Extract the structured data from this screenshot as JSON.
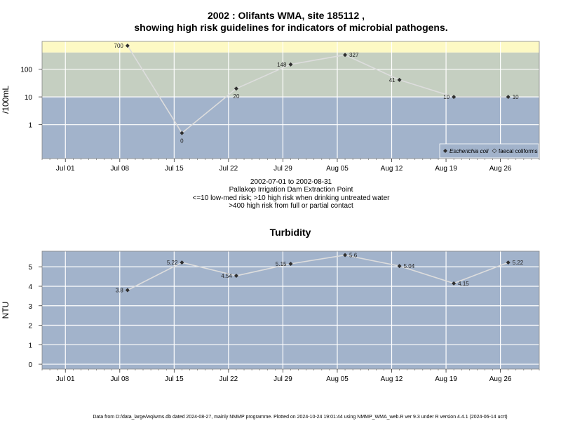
{
  "colors": {
    "low_risk_band": "#a2b3cb",
    "mid_risk_band": "#c5cfc1",
    "high_risk_band": "#fdf9c4",
    "grid": "#ffffff",
    "line": "#dddddd",
    "marker": "#2f2f2f"
  },
  "chart_data": [
    {
      "type": "line",
      "title_line1": "2002 : Olifants WMA, site 185112 ,",
      "title_line2": "showing high risk guidelines for indicators of microbial pathogens.",
      "ylabel": "/100mL",
      "y_scale": "log10",
      "ylim": [
        0.06,
        1000
      ],
      "y_ticks": [
        {
          "v": 1,
          "label": "1"
        },
        {
          "v": 10,
          "label": "10"
        },
        {
          "v": 100,
          "label": "100"
        }
      ],
      "x_range": [
        "2002-06-28",
        "2002-08-31"
      ],
      "x_ticks": [
        {
          "date": "2002-07-01",
          "label": "Jul 01"
        },
        {
          "date": "2002-07-08",
          "label": "Jul 08"
        },
        {
          "date": "2002-07-15",
          "label": "Jul 15"
        },
        {
          "date": "2002-07-22",
          "label": "Jul 22"
        },
        {
          "date": "2002-07-29",
          "label": "Jul 29"
        },
        {
          "date": "2002-08-05",
          "label": "Aug 05"
        },
        {
          "date": "2002-08-12",
          "label": "Aug 12"
        },
        {
          "date": "2002-08-19",
          "label": "Aug 19"
        },
        {
          "date": "2002-08-26",
          "label": "Aug 26"
        }
      ],
      "bands": [
        {
          "from": 0.06,
          "to": 10,
          "color_key": "low_risk_band"
        },
        {
          "from": 10,
          "to": 400,
          "color_key": "mid_risk_band"
        },
        {
          "from": 400,
          "to": 1000,
          "color_key": "high_risk_band"
        }
      ],
      "points": [
        {
          "date": "2002-07-09",
          "value": 700,
          "label": "700",
          "label_pos": "left"
        },
        {
          "date": "2002-07-16",
          "value": 0.5,
          "label": "0",
          "label_pos": "below"
        },
        {
          "date": "2002-07-23",
          "value": 20,
          "label": "20",
          "label_pos": "below"
        },
        {
          "date": "2002-07-30",
          "value": 148,
          "label": "148",
          "label_pos": "left"
        },
        {
          "date": "2002-08-06",
          "value": 327,
          "label": "327",
          "label_pos": "right"
        },
        {
          "date": "2002-08-13",
          "value": 41,
          "label": "41",
          "label_pos": "left"
        },
        {
          "date": "2002-08-20",
          "value": 10,
          "label": "10",
          "label_pos": "left"
        },
        {
          "date": "2002-08-27",
          "value": 10,
          "label": "10",
          "label_pos": "right"
        }
      ],
      "legend": {
        "placement": "bottom-right",
        "entries": [
          {
            "label": "Escherichia coli",
            "marker": "filled-diamond",
            "italic": true
          },
          {
            "label": "faecal coliforms",
            "marker": "open-diamond",
            "italic": false
          }
        ]
      },
      "caption": [
        "2002-07-01 to 2002-08-31",
        "Pallakop Irrigation Dam Extraction Point",
        "<=10 low-med risk; >10 high risk when drinking untreated water",
        ">400 high risk from full or partial contact"
      ]
    },
    {
      "type": "line",
      "title": "Turbidity",
      "ylabel": "NTU",
      "ylim": [
        -0.25,
        5.8
      ],
      "y_ticks": [
        {
          "v": 0,
          "label": "0"
        },
        {
          "v": 1,
          "label": "1"
        },
        {
          "v": 2,
          "label": "2"
        },
        {
          "v": 3,
          "label": "3"
        },
        {
          "v": 4,
          "label": "4"
        },
        {
          "v": 5,
          "label": "5"
        }
      ],
      "x_range": [
        "2002-06-28",
        "2002-08-31"
      ],
      "x_ticks": [
        {
          "date": "2002-07-01",
          "label": "Jul 01"
        },
        {
          "date": "2002-07-08",
          "label": "Jul 08"
        },
        {
          "date": "2002-07-15",
          "label": "Jul 15"
        },
        {
          "date": "2002-07-22",
          "label": "Jul 22"
        },
        {
          "date": "2002-07-29",
          "label": "Jul 29"
        },
        {
          "date": "2002-08-05",
          "label": "Aug 05"
        },
        {
          "date": "2002-08-12",
          "label": "Aug 12"
        },
        {
          "date": "2002-08-19",
          "label": "Aug 19"
        },
        {
          "date": "2002-08-26",
          "label": "Aug 26"
        }
      ],
      "points": [
        {
          "date": "2002-07-09",
          "value": 3.8,
          "label": "3.8",
          "label_pos": "left"
        },
        {
          "date": "2002-07-16",
          "value": 5.22,
          "label": "5.22",
          "label_pos": "left"
        },
        {
          "date": "2002-07-23",
          "value": 4.54,
          "label": "4.54",
          "label_pos": "left"
        },
        {
          "date": "2002-07-30",
          "value": 5.15,
          "label": "5.15",
          "label_pos": "left"
        },
        {
          "date": "2002-08-06",
          "value": 5.6,
          "label": "5.6",
          "label_pos": "right"
        },
        {
          "date": "2002-08-13",
          "value": 5.04,
          "label": "5.04",
          "label_pos": "right"
        },
        {
          "date": "2002-08-20",
          "value": 4.15,
          "label": "4.15",
          "label_pos": "right"
        },
        {
          "date": "2002-08-27",
          "value": 5.22,
          "label": "5.22",
          "label_pos": "right"
        }
      ]
    }
  ],
  "footer": "Data from D:/data_large/wq/wms.db dated 2024-08-27, mainly NMMP programme. Plotted on 2024-10-24 19:01:44 using NMMP_WMA_web.R ver 9.3 under R version 4.4.1 (2024-06-14 ucrt)"
}
